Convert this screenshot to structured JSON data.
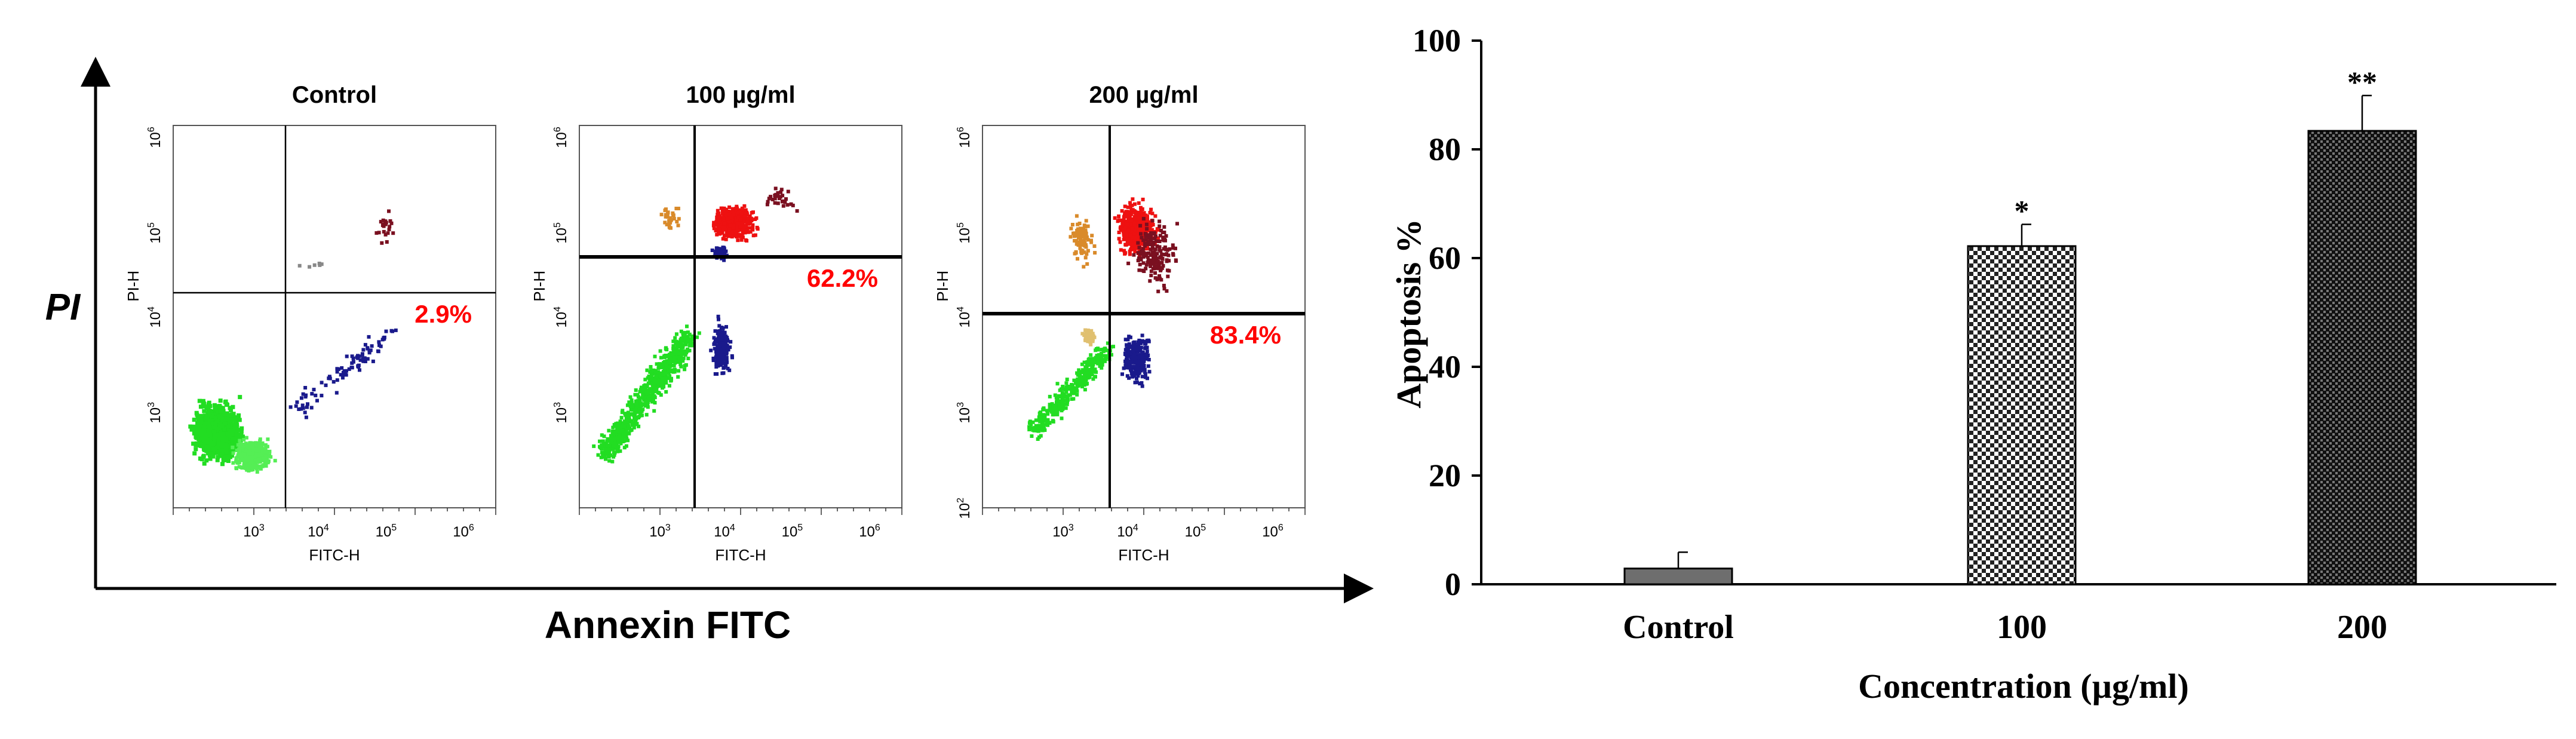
{
  "flow_panel": {
    "y_axis_label": "PI",
    "x_axis_label": "Annexin FITC",
    "channel_x": "FITC-H",
    "channel_y": "PI-H",
    "log_ticks": {
      "t2": "10",
      "t3": "10",
      "t4": "10",
      "t5": "10",
      "t6": "10",
      "e2": "2",
      "e3": "3",
      "e4": "4",
      "e5": "5",
      "e6": "6"
    },
    "plots": [
      {
        "title": "Control",
        "percentage": "2.9%"
      },
      {
        "title": "100 µg/ml",
        "percentage": "62.2%"
      },
      {
        "title": "200 µg/ml",
        "percentage": "83.4%"
      }
    ],
    "colors": {
      "live": "#22dd22",
      "early": "#1a1a8c",
      "late": "#ee1111",
      "late_dark": "#7a1020",
      "necrotic": "#d98a2a",
      "highlight": "#ff0000"
    }
  },
  "chart_data": {
    "type": "bar",
    "categories": [
      "Control",
      "100",
      "200"
    ],
    "values": [
      2.9,
      62.2,
      83.4
    ],
    "error": [
      3.0,
      4.0,
      6.5
    ],
    "significance": [
      "",
      "*",
      "**"
    ],
    "xlabel": "Concentration (µg/ml)",
    "ylabel": "Apoptosis %",
    "ylim": [
      0,
      100
    ],
    "yticks": [
      0,
      20,
      40,
      60,
      80,
      100
    ],
    "fills": [
      "solid-gray",
      "light-checker",
      "dark-checker"
    ]
  }
}
